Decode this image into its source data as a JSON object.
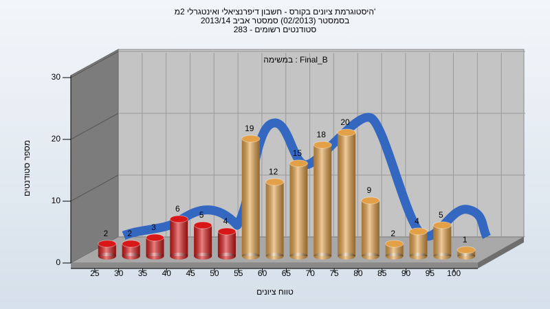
{
  "chart_data": {
    "type": "bar",
    "title": [
      "היסטוגרמת ציונים בקורס - חשבון דיפרנציאלי ואינטגרלי 2מ'",
      "בסמסטר  (02/2013)  סמסטר אביב 2013/14",
      "283 - סטודנטים רשומים"
    ],
    "subtitle": "במשימה : Final_B",
    "x_label": "טווח ציונים",
    "y_label": "מספר סטודנטים",
    "categories": [
      "25",
      "30",
      "35",
      "40",
      "45",
      "50",
      "55",
      "60",
      "65",
      "70",
      "75",
      "80",
      "85",
      "90",
      "95",
      "100"
    ],
    "values": [
      2,
      2,
      3,
      6,
      5,
      4,
      19,
      12,
      15,
      18,
      20,
      9,
      2,
      4,
      5,
      1
    ],
    "colors": [
      "#d81818",
      "#d81818",
      "#d81818",
      "#d81818",
      "#d81818",
      "#d81818",
      "#e3a046",
      "#e3a046",
      "#e3a046",
      "#e3a046",
      "#e3a046",
      "#e3a046",
      "#e3a046",
      "#e3a046",
      "#e3a046",
      "#e3a046"
    ],
    "ylim": [
      0,
      30
    ],
    "yticks": [
      0,
      10,
      20,
      30
    ],
    "grid": true
  }
}
